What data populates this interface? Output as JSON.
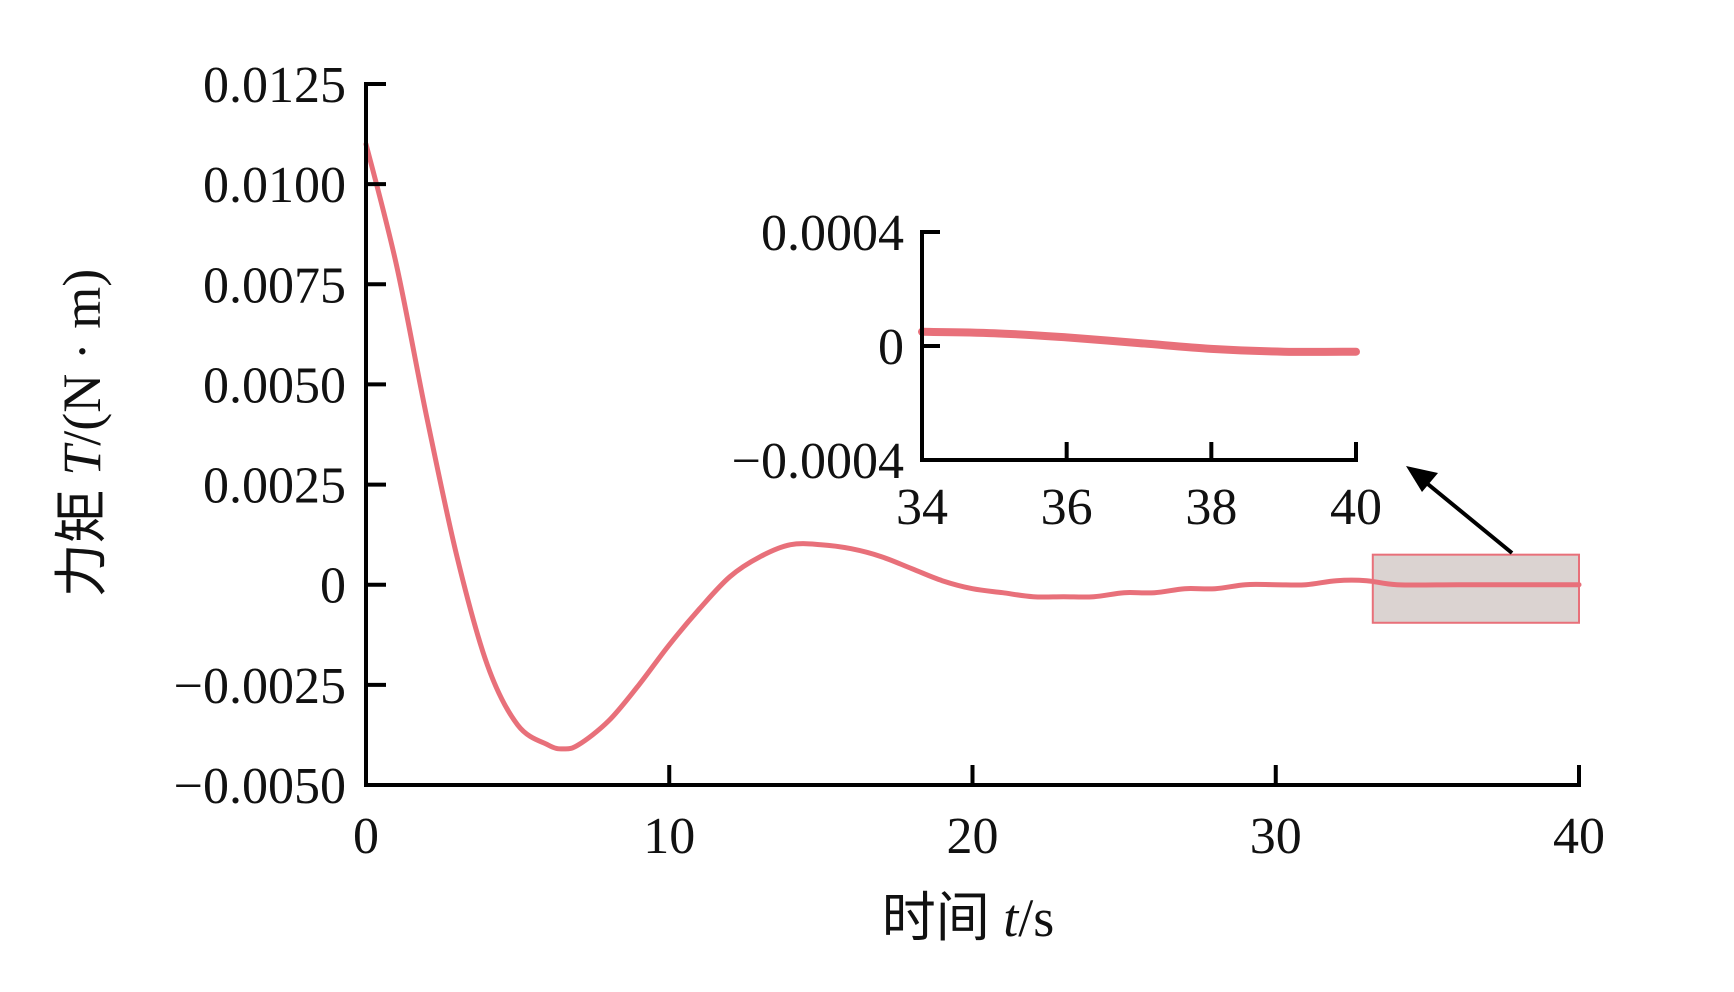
{
  "chart_data": [
    {
      "type": "line",
      "xlabel_prefix": "时间 ",
      "xlabel_var": "t",
      "xlabel_suffix": "/s",
      "ylabel_prefix": "力矩 ",
      "ylabel_var": "T",
      "ylabel_suffix": "/(N · m)",
      "xlim": [
        0,
        40
      ],
      "ylim": [
        -0.005,
        0.0125
      ],
      "x_ticks": [
        0,
        10,
        20,
        30,
        40
      ],
      "x_tick_labels": [
        "0",
        "10",
        "20",
        "30",
        "40"
      ],
      "y_ticks": [
        -0.005,
        -0.0025,
        0,
        0.0025,
        0.005,
        0.0075,
        0.01,
        0.0125
      ],
      "y_tick_labels": [
        "−0.0050",
        "−0.0025",
        "0",
        "0.0025",
        "0.0050",
        "0.0075",
        "0.0100",
        "0.0125"
      ],
      "color": "#e8707a",
      "series": [
        {
          "x": [
            0,
            1,
            2,
            3,
            4,
            5,
            6,
            6.5,
            7,
            8,
            9,
            10,
            11,
            12,
            13,
            14,
            15,
            16,
            17,
            18,
            19,
            20,
            21,
            22,
            23,
            24,
            25,
            26,
            27,
            28,
            29,
            30,
            31,
            32,
            33,
            34,
            36,
            38,
            40
          ],
          "y": [
            0.011,
            0.008,
            0.0042,
            0.0007,
            -0.002,
            -0.0035,
            -0.004,
            -0.0041,
            -0.004,
            -0.0034,
            -0.0025,
            -0.0015,
            -0.0006,
            0.0002,
            0.0007,
            0.001,
            0.001,
            0.0009,
            0.0007,
            0.0004,
            0.0001,
            -0.0001,
            -0.0002,
            -0.0003,
            -0.0003,
            -0.0003,
            -0.0002,
            -0.0002,
            -0.0001,
            -0.0001,
            0.0,
            0.0,
            0.0,
            0.0001,
            0.0001,
            0.0,
            0.0,
            0.0,
            0.0
          ]
        }
      ],
      "zoom_region": {
        "x": [
          33.2,
          40
        ],
        "y": [
          -0.00095,
          0.00075
        ]
      }
    },
    {
      "type": "line",
      "xlim": [
        34,
        40
      ],
      "ylim": [
        -0.0004,
        0.0004
      ],
      "x_ticks": [
        34,
        36,
        38,
        40
      ],
      "x_tick_labels": [
        "34",
        "36",
        "38",
        "40"
      ],
      "y_ticks": [
        -0.0004,
        0,
        0.0004
      ],
      "y_tick_labels": [
        "−0.0004",
        "0",
        "0.0004"
      ],
      "color": "#e8707a",
      "series": [
        {
          "x": [
            34,
            35,
            36,
            37,
            38,
            39,
            40
          ],
          "y": [
            5e-05,
            4.5e-05,
            3e-05,
            1e-05,
            -1e-05,
            -2e-05,
            -2e-05
          ]
        }
      ]
    }
  ]
}
